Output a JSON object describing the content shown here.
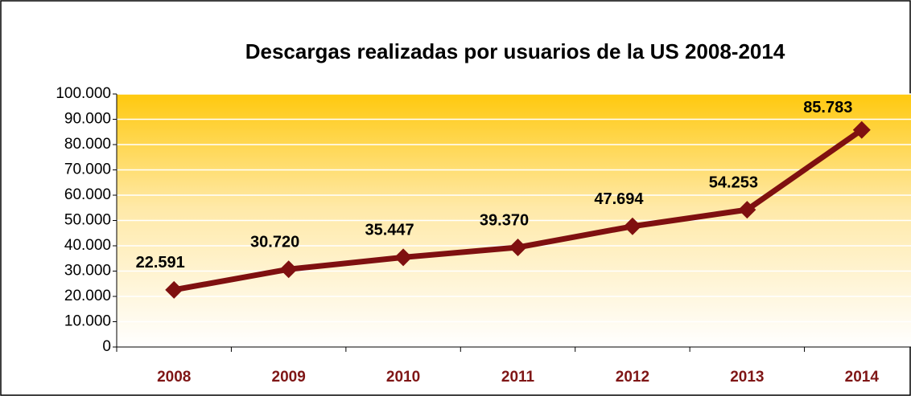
{
  "chart_data": {
    "type": "line",
    "title": "Descargas realizadas por usuarios de la US 2008-2014",
    "categories": [
      "2008",
      "2009",
      "2010",
      "2011",
      "2012",
      "2013",
      "2014"
    ],
    "series": [
      {
        "name": "Descargas",
        "color": "#7f1010",
        "values": [
          22591,
          30720,
          35447,
          39370,
          47694,
          54253,
          85783
        ],
        "value_labels": [
          "22.591",
          "30.720",
          "35.447",
          "39.370",
          "47.694",
          "54.253",
          "85.783"
        ]
      }
    ],
    "ylim": [
      0,
      100000
    ],
    "yticks": [
      0,
      {
        "value": 10000,
        "label": "10.000"
      },
      {
        "value": 20000,
        "label": "20.000"
      },
      {
        "value": 30000,
        "label": "30.000"
      },
      {
        "value": 40000,
        "label": "40.000"
      },
      {
        "value": 50000,
        "label": "50.000"
      },
      {
        "value": 60000,
        "label": "60.000"
      },
      {
        "value": 70000,
        "label": "70.000"
      },
      {
        "value": 80000,
        "label": "80.000"
      },
      {
        "value": 90000,
        "label": "90.000"
      },
      {
        "value": 100000,
        "label": "100.000"
      }
    ],
    "grid": true
  }
}
